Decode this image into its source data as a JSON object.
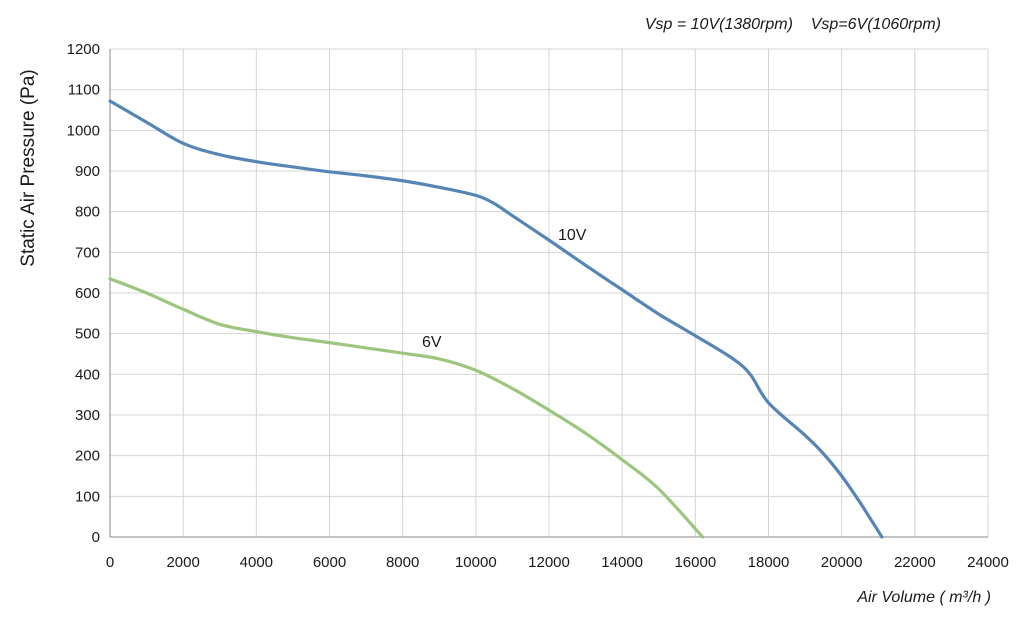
{
  "chart_data": {
    "type": "line",
    "title": "",
    "header_note": "Vsp = 10V(1380rpm)    Vsp=6V(1060rpm)",
    "xlabel": "Air Volume ( m³/h )",
    "ylabel": "Static Air Pressure  (Pa)",
    "xlim": [
      0,
      24000
    ],
    "ylim": [
      0,
      1200
    ],
    "x_ticks": [
      0,
      2000,
      4000,
      6000,
      8000,
      10000,
      12000,
      14000,
      16000,
      18000,
      20000,
      22000,
      24000
    ],
    "y_ticks": [
      0,
      100,
      200,
      300,
      400,
      500,
      600,
      700,
      800,
      900,
      1000,
      1100,
      1200
    ],
    "grid": true,
    "series": [
      {
        "name": "10V",
        "color": "#5585b5",
        "x": [
          0,
          1000,
          2000,
          3000,
          4000,
          5000,
          6000,
          7000,
          8000,
          9000,
          10000,
          10500,
          11000,
          12000,
          13000,
          14000,
          15000,
          16000,
          17000,
          17500,
          18000,
          19000,
          19500,
          20000,
          20500,
          21100
        ],
        "y": [
          1072,
          1020,
          968,
          940,
          923,
          910,
          898,
          888,
          876,
          860,
          840,
          820,
          790,
          730,
          668,
          608,
          548,
          495,
          440,
          400,
          330,
          250,
          205,
          150,
          85,
          0
        ]
      },
      {
        "name": "6V",
        "color": "#9cc57e",
        "x": [
          0,
          1000,
          2000,
          3000,
          4000,
          5000,
          6000,
          7000,
          8000,
          9000,
          10000,
          11000,
          12000,
          13000,
          14000,
          15000,
          16200
        ],
        "y": [
          635,
          600,
          560,
          523,
          505,
          490,
          478,
          465,
          452,
          438,
          410,
          365,
          312,
          255,
          190,
          118,
          0
        ]
      }
    ]
  }
}
